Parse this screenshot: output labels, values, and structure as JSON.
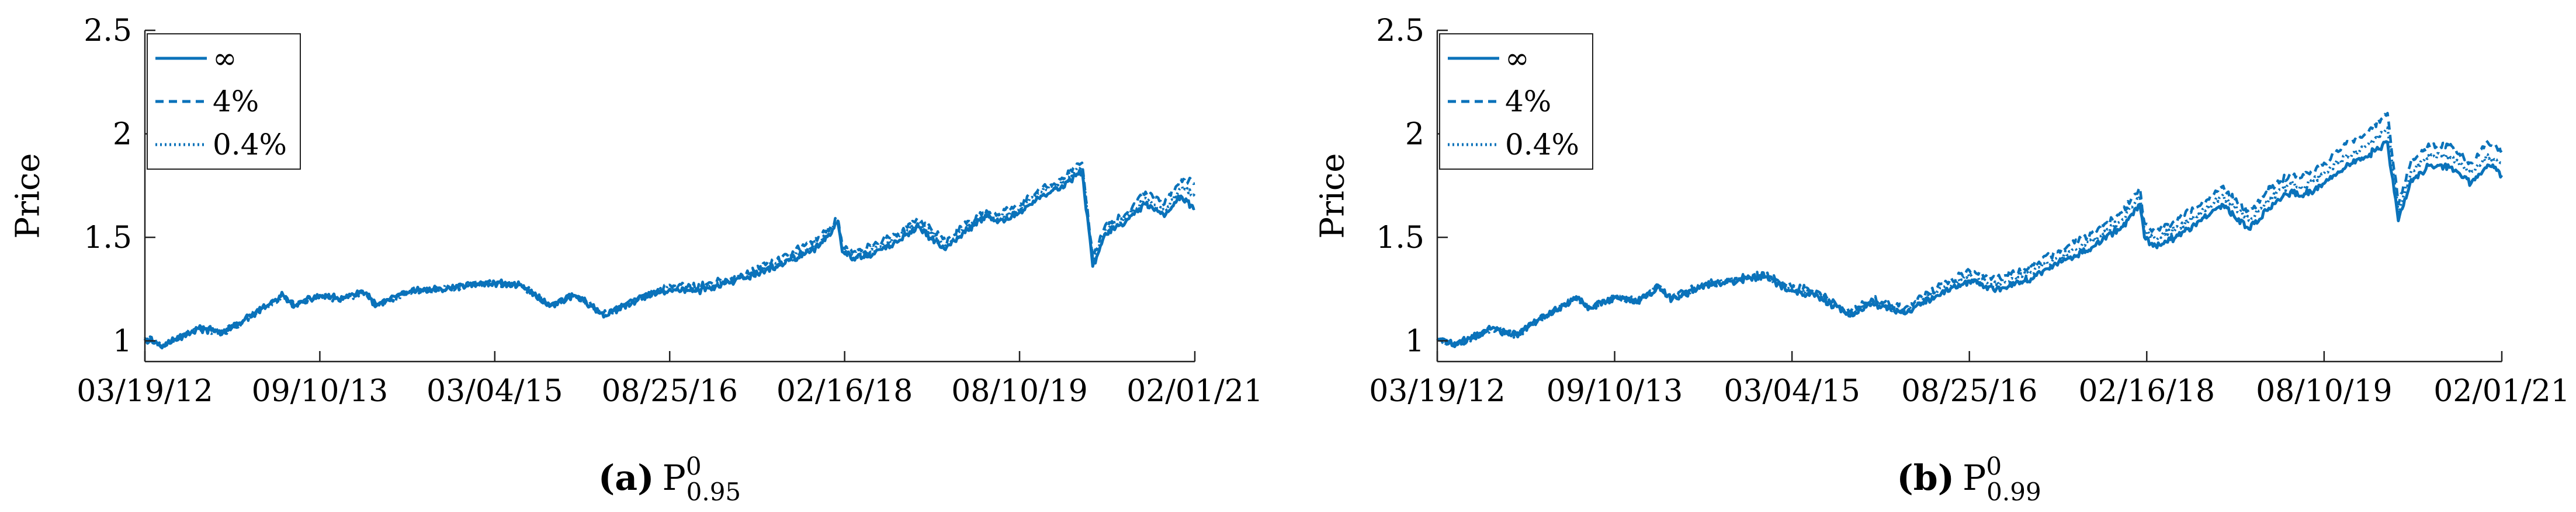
{
  "figure": {
    "line_color": "#0a72ba",
    "panels": [
      {
        "caption_label": "(a)",
        "caption_main": "P",
        "caption_sup": "0",
        "caption_sub": "0.95"
      },
      {
        "caption_label": "(b)",
        "caption_main": "P",
        "caption_sup": "0",
        "caption_sub": "0.99"
      }
    ]
  },
  "chart_data": [
    {
      "type": "line",
      "title": "",
      "xlabel": "",
      "ylabel": "Price",
      "xlim": [
        "2012-03-19",
        "2021-02-01"
      ],
      "ylim": [
        0.9,
        2.5
      ],
      "yticks": [
        1,
        1.5,
        2,
        2.5
      ],
      "ytick_labels": [
        "1",
        "1.5",
        "2",
        "2.5"
      ],
      "xticks": [
        "2012-03-19",
        "2013-09-10",
        "2015-03-04",
        "2016-08-25",
        "2018-02-16",
        "2019-08-10",
        "2021-02-01"
      ],
      "xtick_labels": [
        "03/19/12",
        "09/10/13",
        "03/04/15",
        "08/25/16",
        "02/16/18",
        "08/10/19",
        "02/01/21"
      ],
      "legend": "top-left",
      "grid": false,
      "series": [
        {
          "name": "∞",
          "dash": "solid",
          "x": [
            "2012-03-19",
            "2012-05-15",
            "2012-09-01",
            "2012-11-15",
            "2013-01-20",
            "2013-05-20",
            "2013-06-25",
            "2013-09-10",
            "2013-11-20",
            "2014-01-20",
            "2014-03-04",
            "2014-06-15",
            "2014-09-20",
            "2014-12-15",
            "2015-03-04",
            "2015-05-20",
            "2015-08-24",
            "2015-11-05",
            "2016-02-11",
            "2016-05-20",
            "2016-08-25",
            "2016-11-15",
            "2017-03-01",
            "2017-06-01",
            "2017-09-01",
            "2017-12-01",
            "2018-01-26",
            "2018-02-09",
            "2018-03-15",
            "2018-05-15",
            "2018-08-01",
            "2018-10-03",
            "2018-12-24",
            "2019-02-15",
            "2019-04-30",
            "2019-06-03",
            "2019-08-10",
            "2019-10-15",
            "2019-12-15",
            "2020-02-19",
            "2020-03-23",
            "2020-05-01",
            "2020-07-01",
            "2020-09-02",
            "2020-10-30",
            "2020-12-20",
            "2021-02-01"
          ],
          "y": [
            1.01,
            0.98,
            1.06,
            1.04,
            1.1,
            1.22,
            1.17,
            1.22,
            1.2,
            1.24,
            1.17,
            1.24,
            1.25,
            1.27,
            1.28,
            1.27,
            1.17,
            1.22,
            1.12,
            1.2,
            1.25,
            1.24,
            1.28,
            1.33,
            1.39,
            1.46,
            1.57,
            1.43,
            1.4,
            1.42,
            1.48,
            1.55,
            1.44,
            1.52,
            1.6,
            1.57,
            1.62,
            1.7,
            1.74,
            1.82,
            1.36,
            1.52,
            1.57,
            1.66,
            1.6,
            1.7,
            1.64
          ]
        },
        {
          "name": "4%",
          "dash": "dashed",
          "x": [
            "2012-03-19",
            "2012-05-15",
            "2012-09-01",
            "2012-11-15",
            "2013-01-20",
            "2013-05-20",
            "2013-06-25",
            "2013-09-10",
            "2013-11-20",
            "2014-01-20",
            "2014-03-04",
            "2014-06-15",
            "2014-09-20",
            "2014-12-15",
            "2015-03-04",
            "2015-05-20",
            "2015-08-24",
            "2015-11-05",
            "2016-02-11",
            "2016-05-20",
            "2016-08-25",
            "2016-11-15",
            "2017-03-01",
            "2017-06-01",
            "2017-09-01",
            "2017-12-01",
            "2018-01-26",
            "2018-02-09",
            "2018-03-15",
            "2018-05-15",
            "2018-08-01",
            "2018-10-03",
            "2018-12-24",
            "2019-02-15",
            "2019-04-30",
            "2019-06-03",
            "2019-08-10",
            "2019-10-15",
            "2019-12-15",
            "2020-02-19",
            "2020-03-23",
            "2020-05-01",
            "2020-07-01",
            "2020-09-02",
            "2020-10-30",
            "2020-12-20",
            "2021-02-01"
          ],
          "y": [
            1.01,
            0.98,
            1.06,
            1.04,
            1.1,
            1.22,
            1.17,
            1.22,
            1.2,
            1.24,
            1.17,
            1.24,
            1.25,
            1.27,
            1.28,
            1.27,
            1.17,
            1.22,
            1.13,
            1.21,
            1.27,
            1.26,
            1.3,
            1.36,
            1.42,
            1.5,
            1.59,
            1.46,
            1.43,
            1.46,
            1.52,
            1.59,
            1.48,
            1.56,
            1.63,
            1.61,
            1.66,
            1.74,
            1.78,
            1.86,
            1.4,
            1.56,
            1.61,
            1.72,
            1.66,
            1.78,
            1.76
          ]
        },
        {
          "name": "0.4%",
          "dash": "dotted",
          "x": [
            "2012-03-19",
            "2012-05-15",
            "2012-09-01",
            "2012-11-15",
            "2013-01-20",
            "2013-05-20",
            "2013-06-25",
            "2013-09-10",
            "2013-11-20",
            "2014-01-20",
            "2014-03-04",
            "2014-06-15",
            "2014-09-20",
            "2014-12-15",
            "2015-03-04",
            "2015-05-20",
            "2015-08-24",
            "2015-11-05",
            "2016-02-11",
            "2016-05-20",
            "2016-08-25",
            "2016-11-15",
            "2017-03-01",
            "2017-06-01",
            "2017-09-01",
            "2017-12-01",
            "2018-01-26",
            "2018-02-09",
            "2018-03-15",
            "2018-05-15",
            "2018-08-01",
            "2018-10-03",
            "2018-12-24",
            "2019-02-15",
            "2019-04-30",
            "2019-06-03",
            "2019-08-10",
            "2019-10-15",
            "2019-12-15",
            "2020-02-19",
            "2020-03-23",
            "2020-05-01",
            "2020-07-01",
            "2020-09-02",
            "2020-10-30",
            "2020-12-20",
            "2021-02-01"
          ],
          "y": [
            1.01,
            0.98,
            1.06,
            1.04,
            1.1,
            1.22,
            1.17,
            1.22,
            1.2,
            1.24,
            1.17,
            1.24,
            1.25,
            1.27,
            1.28,
            1.27,
            1.17,
            1.22,
            1.12,
            1.2,
            1.26,
            1.25,
            1.29,
            1.34,
            1.4,
            1.48,
            1.58,
            1.44,
            1.41,
            1.44,
            1.5,
            1.57,
            1.46,
            1.54,
            1.61,
            1.59,
            1.64,
            1.72,
            1.76,
            1.84,
            1.38,
            1.54,
            1.59,
            1.69,
            1.63,
            1.74,
            1.7
          ]
        }
      ]
    },
    {
      "type": "line",
      "title": "",
      "xlabel": "",
      "ylabel": "Price",
      "xlim": [
        "2012-03-19",
        "2021-02-01"
      ],
      "ylim": [
        0.9,
        2.5
      ],
      "yticks": [
        1,
        1.5,
        2,
        2.5
      ],
      "ytick_labels": [
        "1",
        "1.5",
        "2",
        "2.5"
      ],
      "xticks": [
        "2012-03-19",
        "2013-09-10",
        "2015-03-04",
        "2016-08-25",
        "2018-02-16",
        "2019-08-10",
        "2021-02-01"
      ],
      "xtick_labels": [
        "03/19/12",
        "09/10/13",
        "03/04/15",
        "08/25/16",
        "02/16/18",
        "08/10/19",
        "02/01/21"
      ],
      "legend": "top-left",
      "grid": false,
      "series": [
        {
          "name": "∞",
          "dash": "solid",
          "x": [
            "2012-03-19",
            "2012-05-15",
            "2012-09-01",
            "2012-11-15",
            "2013-01-20",
            "2013-05-20",
            "2013-06-25",
            "2013-09-10",
            "2013-11-20",
            "2014-01-20",
            "2014-03-04",
            "2014-06-15",
            "2014-09-20",
            "2014-12-15",
            "2015-03-04",
            "2015-05-20",
            "2015-08-24",
            "2015-11-05",
            "2016-02-11",
            "2016-05-20",
            "2016-08-25",
            "2016-11-15",
            "2017-03-01",
            "2017-06-01",
            "2017-09-01",
            "2017-12-01",
            "2018-01-26",
            "2018-02-09",
            "2018-03-15",
            "2018-05-15",
            "2018-08-01",
            "2018-10-03",
            "2018-12-24",
            "2019-02-15",
            "2019-04-30",
            "2019-06-03",
            "2019-08-10",
            "2019-10-15",
            "2019-12-15",
            "2020-02-19",
            "2020-03-23",
            "2020-05-01",
            "2020-07-01",
            "2020-09-02",
            "2020-10-30",
            "2020-12-20",
            "2021-02-01"
          ],
          "y": [
            1.01,
            0.98,
            1.06,
            1.03,
            1.1,
            1.21,
            1.16,
            1.21,
            1.19,
            1.26,
            1.2,
            1.27,
            1.29,
            1.31,
            1.24,
            1.22,
            1.12,
            1.18,
            1.13,
            1.22,
            1.29,
            1.25,
            1.3,
            1.38,
            1.45,
            1.55,
            1.66,
            1.5,
            1.46,
            1.5,
            1.58,
            1.66,
            1.54,
            1.63,
            1.72,
            1.7,
            1.76,
            1.84,
            1.89,
            1.96,
            1.58,
            1.78,
            1.85,
            1.84,
            1.76,
            1.85,
            1.8
          ]
        },
        {
          "name": "4%",
          "dash": "dashed",
          "x": [
            "2012-03-19",
            "2012-05-15",
            "2012-09-01",
            "2012-11-15",
            "2013-01-20",
            "2013-05-20",
            "2013-06-25",
            "2013-09-10",
            "2013-11-20",
            "2014-01-20",
            "2014-03-04",
            "2014-06-15",
            "2014-09-20",
            "2014-12-15",
            "2015-03-04",
            "2015-05-20",
            "2015-08-24",
            "2015-11-05",
            "2016-02-11",
            "2016-05-20",
            "2016-08-25",
            "2016-11-15",
            "2017-03-01",
            "2017-06-01",
            "2017-09-01",
            "2017-12-01",
            "2018-01-26",
            "2018-02-09",
            "2018-03-15",
            "2018-05-15",
            "2018-08-01",
            "2018-10-03",
            "2018-12-24",
            "2019-02-15",
            "2019-04-30",
            "2019-06-03",
            "2019-08-10",
            "2019-10-15",
            "2019-12-15",
            "2020-02-19",
            "2020-03-23",
            "2020-05-01",
            "2020-07-01",
            "2020-09-02",
            "2020-10-30",
            "2020-12-20",
            "2021-02-01"
          ],
          "y": [
            1.01,
            0.98,
            1.06,
            1.03,
            1.1,
            1.21,
            1.16,
            1.21,
            1.19,
            1.27,
            1.21,
            1.28,
            1.3,
            1.32,
            1.26,
            1.24,
            1.14,
            1.2,
            1.16,
            1.26,
            1.34,
            1.3,
            1.36,
            1.44,
            1.52,
            1.62,
            1.74,
            1.57,
            1.53,
            1.58,
            1.66,
            1.74,
            1.62,
            1.72,
            1.81,
            1.79,
            1.86,
            1.95,
            2.0,
            2.1,
            1.66,
            1.87,
            1.95,
            1.94,
            1.86,
            1.96,
            1.92
          ]
        },
        {
          "name": "0.4%",
          "dash": "dotted",
          "x": [
            "2012-03-19",
            "2012-05-15",
            "2012-09-01",
            "2012-11-15",
            "2013-01-20",
            "2013-05-20",
            "2013-06-25",
            "2013-09-10",
            "2013-11-20",
            "2014-01-20",
            "2014-03-04",
            "2014-06-15",
            "2014-09-20",
            "2014-12-15",
            "2015-03-04",
            "2015-05-20",
            "2015-08-24",
            "2015-11-05",
            "2016-02-11",
            "2016-05-20",
            "2016-08-25",
            "2016-11-15",
            "2017-03-01",
            "2017-06-01",
            "2017-09-01",
            "2017-12-01",
            "2018-01-26",
            "2018-02-09",
            "2018-03-15",
            "2018-05-15",
            "2018-08-01",
            "2018-10-03",
            "2018-12-24",
            "2019-02-15",
            "2019-04-30",
            "2019-06-03",
            "2019-08-10",
            "2019-10-15",
            "2019-12-15",
            "2020-02-19",
            "2020-03-23",
            "2020-05-01",
            "2020-07-01",
            "2020-09-02",
            "2020-10-30",
            "2020-12-20",
            "2021-02-01"
          ],
          "y": [
            1.01,
            0.98,
            1.06,
            1.03,
            1.1,
            1.21,
            1.16,
            1.21,
            1.19,
            1.26,
            1.2,
            1.27,
            1.3,
            1.31,
            1.25,
            1.23,
            1.13,
            1.19,
            1.14,
            1.24,
            1.31,
            1.27,
            1.33,
            1.41,
            1.48,
            1.58,
            1.7,
            1.53,
            1.49,
            1.54,
            1.62,
            1.7,
            1.58,
            1.67,
            1.76,
            1.74,
            1.81,
            1.89,
            1.94,
            2.03,
            1.62,
            1.82,
            1.9,
            1.89,
            1.81,
            1.9,
            1.86
          ]
        }
      ]
    }
  ]
}
